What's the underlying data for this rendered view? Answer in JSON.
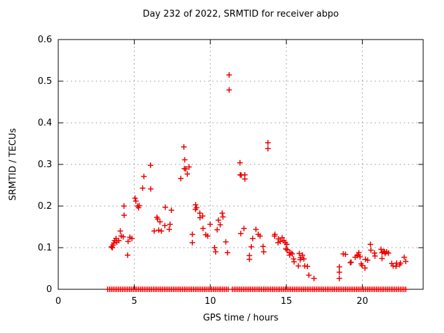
{
  "chart_data": {
    "type": "scatter",
    "title": "Day 232 of 2022, SRMTID for receiver abpo",
    "xlabel": "GPS time / hours",
    "ylabel": "SRMTID / TECUs",
    "xlim": [
      0,
      24
    ],
    "ylim": [
      0,
      0.6
    ],
    "xticks": [
      0,
      5,
      10,
      15,
      20
    ],
    "xtick_labels": [
      "0",
      "5",
      "10",
      "15",
      "20"
    ],
    "yticks": [
      0,
      0.1,
      0.2,
      0.3,
      0.4,
      0.5,
      0.6
    ],
    "ytick_labels": [
      "0",
      "0.1",
      "0.2",
      "0.3",
      "0.4",
      "0.5",
      "0.6"
    ],
    "grid": true,
    "legend": "none",
    "marker": "plus",
    "marker_color": "#ee0000",
    "grid_color": "#a8a8a8",
    "axis_color": "#000000",
    "series": [
      {
        "name": "SRMTID",
        "points": [
          [
            3.5,
            0.102
          ],
          [
            3.56,
            0.1
          ],
          [
            3.59,
            0.106
          ],
          [
            3.65,
            0.111
          ],
          [
            3.71,
            0.117
          ],
          [
            3.8,
            0.122
          ],
          [
            3.85,
            0.113
          ],
          [
            3.98,
            0.117
          ],
          [
            4.08,
            0.14
          ],
          [
            4.14,
            0.128
          ],
          [
            4.27,
            0.126
          ],
          [
            4.32,
            0.2
          ],
          [
            4.33,
            0.178
          ],
          [
            4.56,
            0.082
          ],
          [
            4.59,
            0.115
          ],
          [
            4.71,
            0.125
          ],
          [
            4.84,
            0.122
          ],
          [
            5.05,
            0.219
          ],
          [
            5.1,
            0.212
          ],
          [
            5.22,
            0.2
          ],
          [
            5.28,
            0.196
          ],
          [
            5.32,
            0.201
          ],
          [
            5.55,
            0.243
          ],
          [
            5.63,
            0.271
          ],
          [
            6.07,
            0.298
          ],
          [
            6.08,
            0.241
          ],
          [
            6.31,
            0.14
          ],
          [
            6.49,
            0.173
          ],
          [
            6.54,
            0.169
          ],
          [
            6.6,
            0.142
          ],
          [
            6.69,
            0.162
          ],
          [
            6.78,
            0.14
          ],
          [
            7.01,
            0.153
          ],
          [
            7.04,
            0.197
          ],
          [
            7.3,
            0.144
          ],
          [
            7.35,
            0.156
          ],
          [
            7.44,
            0.19
          ],
          [
            8.06,
            0.266
          ],
          [
            8.26,
            0.342
          ],
          [
            8.29,
            0.29
          ],
          [
            8.32,
            0.311
          ],
          [
            8.38,
            0.289
          ],
          [
            8.49,
            0.277
          ],
          [
            8.6,
            0.294
          ],
          [
            8.82,
            0.132
          ],
          [
            8.82,
            0.112
          ],
          [
            9.02,
            0.192
          ],
          [
            9.03,
            0.203
          ],
          [
            9.1,
            0.196
          ],
          [
            9.31,
            0.183
          ],
          [
            9.32,
            0.172
          ],
          [
            9.5,
            0.176
          ],
          [
            9.52,
            0.146
          ],
          [
            9.7,
            0.131
          ],
          [
            9.83,
            0.128
          ],
          [
            9.99,
            0.156
          ],
          [
            10.28,
            0.1
          ],
          [
            10.35,
            0.09
          ],
          [
            10.45,
            0.143
          ],
          [
            10.53,
            0.166
          ],
          [
            10.65,
            0.155
          ],
          [
            10.78,
            0.183
          ],
          [
            10.83,
            0.174
          ],
          [
            11.02,
            0.114
          ],
          [
            11.13,
            0.088
          ],
          [
            11.24,
            0.515
          ],
          [
            11.24,
            0.479
          ],
          [
            11.95,
            0.304
          ],
          [
            11.97,
            0.275
          ],
          [
            12.0,
            0.134
          ],
          [
            12.03,
            0.274
          ],
          [
            12.21,
            0.146
          ],
          [
            12.27,
            0.275
          ],
          [
            12.27,
            0.265
          ],
          [
            12.57,
            0.081
          ],
          [
            12.57,
            0.072
          ],
          [
            12.7,
            0.102
          ],
          [
            12.79,
            0.122
          ],
          [
            13.0,
            0.144
          ],
          [
            13.15,
            0.132
          ],
          [
            13.27,
            0.128
          ],
          [
            13.47,
            0.103
          ],
          [
            13.51,
            0.09
          ],
          [
            13.79,
            0.352
          ],
          [
            13.79,
            0.338
          ],
          [
            14.22,
            0.128
          ],
          [
            14.25,
            0.132
          ],
          [
            14.45,
            0.112
          ],
          [
            14.48,
            0.121
          ],
          [
            14.6,
            0.115
          ],
          [
            14.72,
            0.124
          ],
          [
            14.84,
            0.117
          ],
          [
            14.93,
            0.112
          ],
          [
            14.97,
            0.097
          ],
          [
            15.03,
            0.108
          ],
          [
            15.06,
            0.095
          ],
          [
            15.19,
            0.088
          ],
          [
            15.22,
            0.082
          ],
          [
            15.3,
            0.088
          ],
          [
            15.39,
            0.085
          ],
          [
            15.48,
            0.073
          ],
          [
            15.51,
            0.066
          ],
          [
            15.79,
            0.056
          ],
          [
            15.85,
            0.086
          ],
          [
            15.91,
            0.071
          ],
          [
            15.94,
            0.076
          ],
          [
            16.06,
            0.082
          ],
          [
            16.15,
            0.073
          ],
          [
            16.21,
            0.056
          ],
          [
            16.39,
            0.055
          ],
          [
            16.48,
            0.034
          ],
          [
            16.82,
            0.026
          ],
          [
            18.49,
            0.054
          ],
          [
            18.49,
            0.041
          ],
          [
            18.49,
            0.026
          ],
          [
            18.74,
            0.085
          ],
          [
            18.89,
            0.084
          ],
          [
            19.21,
            0.064
          ],
          [
            19.26,
            0.065
          ],
          [
            19.53,
            0.077
          ],
          [
            19.65,
            0.081
          ],
          [
            19.74,
            0.083
          ],
          [
            19.77,
            0.088
          ],
          [
            19.85,
            0.078
          ],
          [
            19.92,
            0.061
          ],
          [
            19.98,
            0.057
          ],
          [
            20.17,
            0.051
          ],
          [
            20.2,
            0.072
          ],
          [
            20.35,
            0.07
          ],
          [
            20.53,
            0.108
          ],
          [
            20.56,
            0.094
          ],
          [
            20.8,
            0.087
          ],
          [
            20.83,
            0.08
          ],
          [
            21.23,
            0.096
          ],
          [
            21.29,
            0.088
          ],
          [
            21.29,
            0.074
          ],
          [
            21.41,
            0.091
          ],
          [
            21.45,
            0.09
          ],
          [
            21.5,
            0.086
          ],
          [
            21.6,
            0.09
          ],
          [
            21.72,
            0.087
          ],
          [
            21.93,
            0.062
          ],
          [
            22.02,
            0.056
          ],
          [
            22.21,
            0.055
          ],
          [
            22.25,
            0.063
          ],
          [
            22.45,
            0.059
          ],
          [
            22.51,
            0.063
          ],
          [
            22.75,
            0.077
          ],
          [
            22.85,
            0.067
          ]
        ]
      }
    ],
    "zero_band": {
      "value": 0,
      "runs": [
        [
          3.25,
          11.25
        ],
        [
          11.45,
          22.87
        ]
      ],
      "marker_spacing_hours": 0.12
    }
  }
}
